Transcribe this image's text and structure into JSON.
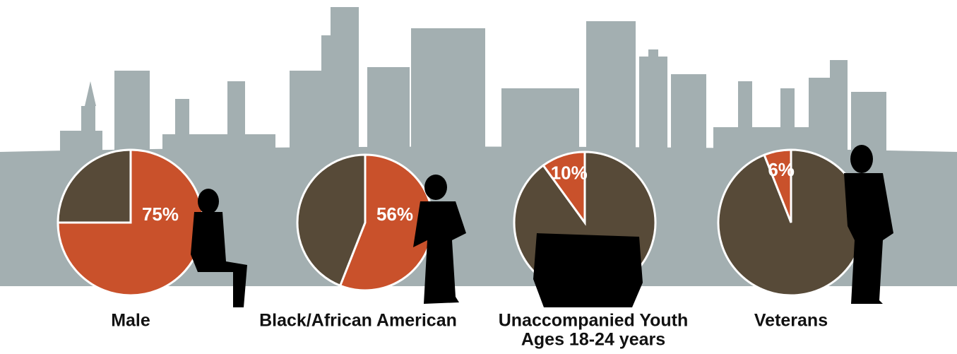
{
  "chart_data": [
    {
      "type": "pie",
      "title": [
        "Male"
      ],
      "values": [
        75,
        25
      ],
      "value_labels": [
        "75%",
        null
      ],
      "colors": [
        "#c9512b",
        "#574a38"
      ]
    },
    {
      "type": "pie",
      "title": [
        "Black/African American"
      ],
      "values": [
        56,
        44
      ],
      "value_labels": [
        "56%",
        null
      ],
      "colors": [
        "#c9512b",
        "#574a38"
      ]
    },
    {
      "type": "pie",
      "title": [
        "Unaccompanied Youth",
        "Ages 18-24 years"
      ],
      "values": [
        90,
        10
      ],
      "value_labels": [
        null,
        "10%"
      ],
      "colors": [
        "#574a38",
        "#c9512b"
      ]
    },
    {
      "type": "pie",
      "title": [
        "Veterans"
      ],
      "values": [
        94,
        6
      ],
      "value_labels": [
        null,
        "6%"
      ],
      "colors": [
        "#574a38",
        "#c9512b"
      ]
    }
  ]
}
